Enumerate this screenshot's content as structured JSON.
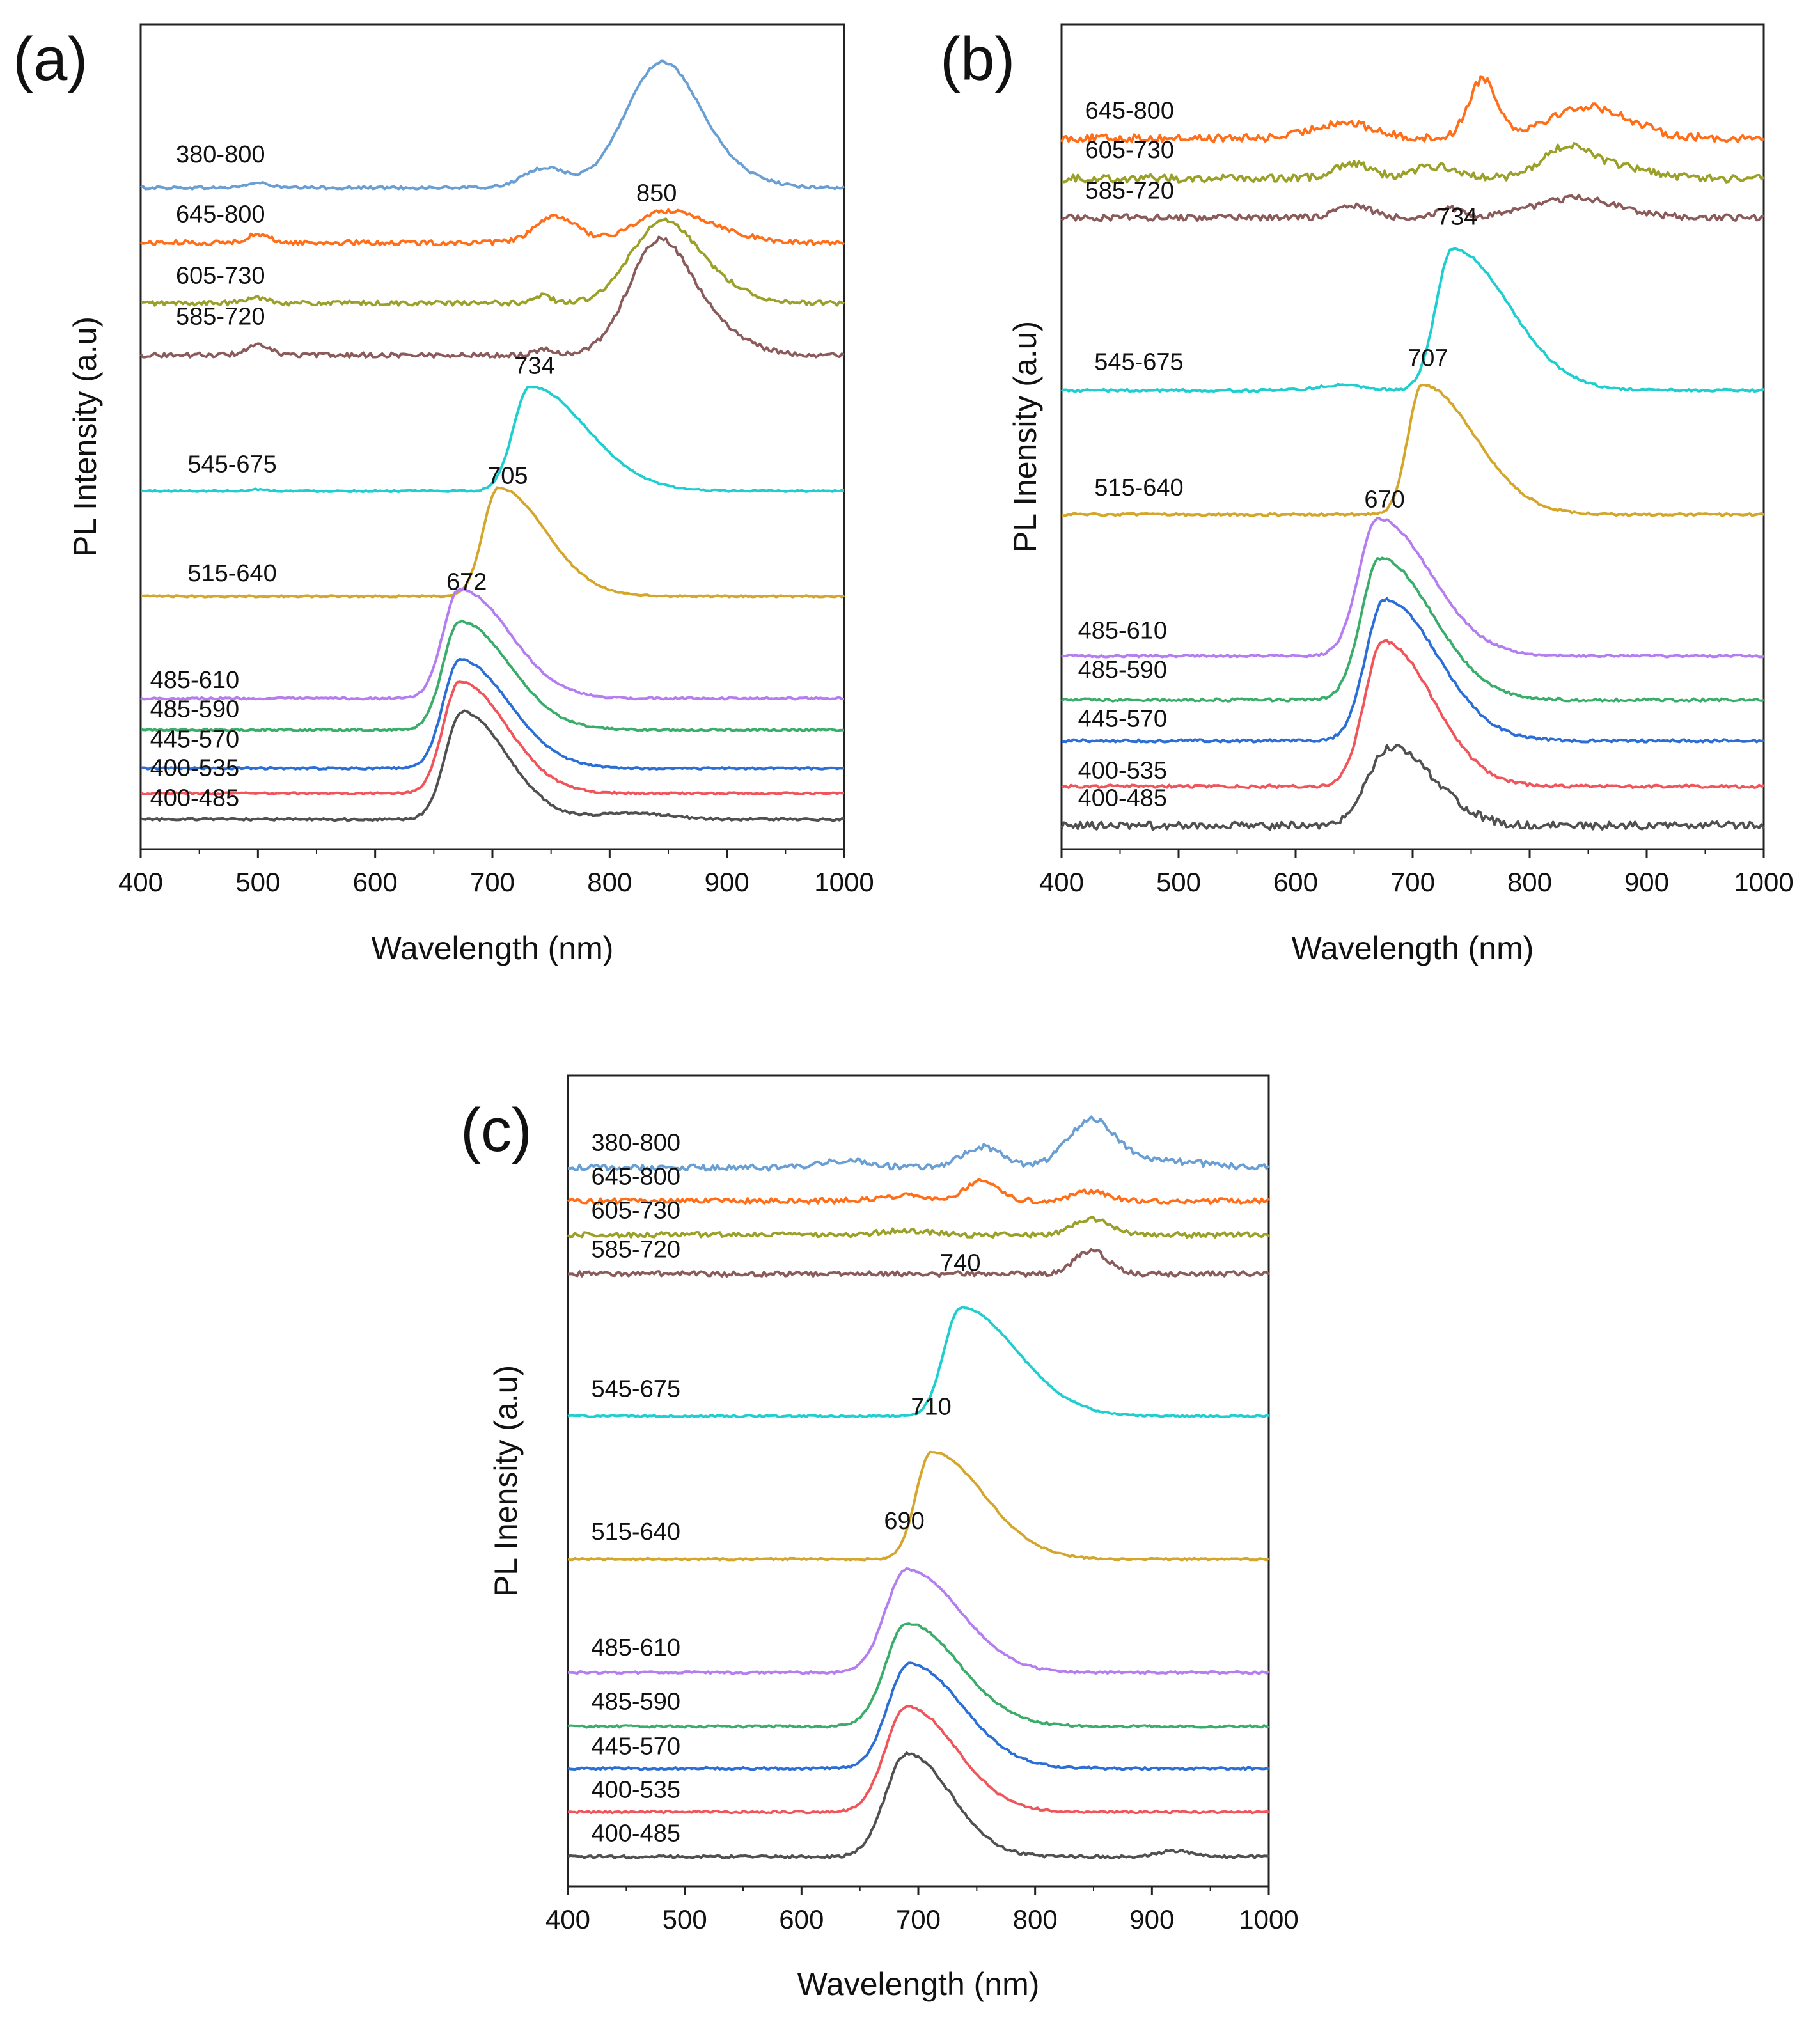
{
  "colors": {
    "380-800": "#6a9fd4",
    "645-800": "#ff6f1a",
    "605-730": "#9aa028",
    "585-720": "#8b5a5a",
    "545-675": "#1fcfd0",
    "515-640": "#d4a72c",
    "485-610": "#b47df0",
    "485-590": "#3aad6a",
    "445-570": "#2b6fd6",
    "400-535": "#f0555c",
    "400-485": "#505050"
  },
  "chart_data": [
    {
      "id": "a",
      "type": "line",
      "panel_label": "(a)",
      "xlabel": "Wavelength (nm)",
      "ylabel": "PL Intensity (a.u)",
      "xlim": [
        400,
        1000
      ],
      "ylim": [
        0,
        100
      ],
      "xticks": [
        "400",
        "500",
        "600",
        "700",
        "800",
        "900",
        "1000"
      ],
      "yticks_visible": false,
      "series": [
        {
          "name": "380-800",
          "baseline": 82.2,
          "label_x": 430,
          "label_y": 85.4,
          "noise": 0.18,
          "peaks": [
            [
              500,
              0.6,
              10
            ],
            [
              745,
              2.5,
              18
            ],
            [
              842,
              14.3,
              30
            ],
            [
              880,
              3.0,
              35
            ]
          ]
        },
        {
          "name": "645-800",
          "baseline": 75.2,
          "label_x": 430,
          "label_y": 77.8,
          "noise": 0.3,
          "peaks": [
            [
              500,
              1.0,
              10
            ],
            [
              755,
              3.3,
              18
            ],
            [
              842,
              3.0,
              25
            ],
            [
              880,
              2.0,
              30
            ]
          ]
        },
        {
          "name": "605-730",
          "baseline": 67.5,
          "label_x": 430,
          "label_y": 70.0,
          "noise": 0.3,
          "peaks": [
            [
              500,
              0.7,
              10
            ],
            [
              742,
              1.0,
              8
            ],
            [
              842,
              9.0,
              26
            ],
            [
              880,
              3.0,
              30
            ]
          ]
        },
        {
          "name": "585-720",
          "baseline": 60.9,
          "label_x": 430,
          "label_y": 64.8,
          "noise": 0.3,
          "peaks": [
            [
              500,
              1.2,
              10
            ],
            [
              745,
              0.8,
              8
            ],
            [
              840,
              13.0,
              25
            ],
            [
              880,
              4.0,
              30
            ]
          ]
        },
        {
          "name": "545-675",
          "baseline": 43.6,
          "label_x": 440,
          "label_y": 46.0,
          "noise": 0.1,
          "peaks": [
            [
              732,
              13.3,
              14,
              48
            ],
            [
              500,
              0.2,
              8
            ]
          ]
        },
        {
          "name": "515-640",
          "baseline": 30.2,
          "label_x": 440,
          "label_y": 32.1,
          "noise": 0.1,
          "peaks": [
            [
              705,
              13.8,
              13,
              40
            ]
          ]
        },
        {
          "name": "485-610",
          "baseline": 17.2,
          "label_x": 408,
          "label_y": 18.5,
          "noise": 0.12,
          "peaks": [
            [
              672,
              13.9,
              14,
              42
            ]
          ]
        },
        {
          "name": "485-590",
          "baseline": 13.2,
          "label_x": 408,
          "label_y": 14.8,
          "noise": 0.12,
          "peaks": [
            [
              672,
              13.8,
              14,
              42
            ]
          ]
        },
        {
          "name": "445-570",
          "baseline": 8.3,
          "label_x": 408,
          "label_y": 11.0,
          "noise": 0.12,
          "peaks": [
            [
              672,
              13.8,
              14,
              42
            ]
          ]
        },
        {
          "name": "400-535",
          "baseline": 5.1,
          "label_x": 408,
          "label_y": 7.3,
          "noise": 0.12,
          "peaks": [
            [
              672,
              14.2,
              14,
              40
            ]
          ]
        },
        {
          "name": "400-485",
          "baseline": 1.8,
          "label_x": 408,
          "label_y": 3.5,
          "noise": 0.15,
          "peaks": [
            [
              674,
              13.7,
              14,
              38
            ],
            [
              820,
              0.8,
              30
            ]
          ]
        }
      ],
      "annotations": [
        {
          "text": "850",
          "x": 840,
          "y": 80.5
        },
        {
          "text": "734",
          "x": 736,
          "y": 58.5
        },
        {
          "text": "705",
          "x": 713,
          "y": 44.5
        },
        {
          "text": "672",
          "x": 678,
          "y": 31.0
        }
      ]
    },
    {
      "id": "b",
      "type": "line",
      "panel_label": "(b)",
      "xlabel": "Wavelength (nm)",
      "ylabel": "PL Inensity (a.u)",
      "xlim": [
        400,
        1000
      ],
      "ylim": [
        0,
        100
      ],
      "xticks": [
        "400",
        "500",
        "600",
        "700",
        "800",
        "900",
        "1000"
      ],
      "yticks_visible": false,
      "series": [
        {
          "name": "645-800",
          "baseline": 88.5,
          "label_x": 420,
          "label_y": 91.0,
          "noise": 0.5,
          "peaks": [
            [
              640,
              2.0,
              25
            ],
            [
              760,
              7.5,
              12
            ],
            [
              850,
              4.0,
              35
            ]
          ]
        },
        {
          "name": "605-730",
          "baseline": 83.4,
          "label_x": 420,
          "label_y": 86.0,
          "noise": 0.5,
          "peaks": [
            [
              648,
              2.0,
              15
            ],
            [
              720,
              1.5,
              20
            ],
            [
              830,
              3.5,
              20
            ],
            [
              870,
              1.5,
              30
            ]
          ]
        },
        {
          "name": "585-720",
          "baseline": 78.4,
          "label_x": 420,
          "label_y": 80.8,
          "noise": 0.4,
          "peaks": [
            [
              650,
              1.5,
              15
            ],
            [
              730,
              1.2,
              10
            ],
            [
              840,
              2.5,
              35
            ]
          ]
        },
        {
          "name": "545-675",
          "baseline": 56.4,
          "label_x": 428,
          "label_y": 59.0,
          "noise": 0.15,
          "peaks": [
            [
              734,
              18.0,
              14,
              48
            ],
            [
              640,
              0.7,
              20
            ]
          ]
        },
        {
          "name": "515-640",
          "baseline": 40.6,
          "label_x": 428,
          "label_y": 43.0,
          "noise": 0.15,
          "peaks": [
            [
              708,
              16.5,
              12,
              45
            ]
          ]
        },
        {
          "name": "485-610",
          "baseline": 22.6,
          "label_x": 414,
          "label_y": 24.8,
          "noise": 0.15,
          "peaks": [
            [
              670,
              17.5,
              16,
              45
            ]
          ]
        },
        {
          "name": "485-590",
          "baseline": 17.0,
          "label_x": 414,
          "label_y": 19.8,
          "noise": 0.18,
          "peaks": [
            [
              672,
              18.0,
              16,
              45
            ]
          ]
        },
        {
          "name": "445-570",
          "baseline": 11.8,
          "label_x": 414,
          "label_y": 13.6,
          "noise": 0.18,
          "peaks": [
            [
              676,
              18.0,
              16,
              45
            ]
          ]
        },
        {
          "name": "400-535",
          "baseline": 6.0,
          "label_x": 414,
          "label_y": 7.0,
          "noise": 0.2,
          "peaks": [
            [
              675,
              18.5,
              16,
              42
            ]
          ]
        },
        {
          "name": "400-485",
          "baseline": 1.0,
          "label_x": 414,
          "label_y": 3.5,
          "noise": 0.5,
          "peaks": [
            [
              680,
              10.0,
              18,
              38
            ]
          ]
        }
      ],
      "annotations": [
        {
          "text": "734",
          "x": 738,
          "y": 77.5
        },
        {
          "text": "707",
          "x": 713,
          "y": 59.5
        },
        {
          "text": "670",
          "x": 676,
          "y": 41.5
        }
      ]
    },
    {
      "id": "c",
      "type": "line",
      "panel_label": "(c)",
      "xlabel": "Wavelength (nm)",
      "ylabel": "PL Inensity (a.u)",
      "xlim": [
        400,
        1000
      ],
      "ylim": [
        0,
        100
      ],
      "xticks": [
        "400",
        "500",
        "600",
        "700",
        "800",
        "900",
        "1000"
      ],
      "yticks_visible": false,
      "series": [
        {
          "name": "380-800",
          "baseline": 87.5,
          "label_x": 420,
          "label_y": 89.8,
          "noise": 0.4,
          "peaks": [
            [
              640,
              1.0,
              20
            ],
            [
              755,
              2.8,
              18
            ],
            [
              848,
              6.2,
              20
            ],
            [
              900,
              1.0,
              40
            ]
          ]
        },
        {
          "name": "645-800",
          "baseline": 83.0,
          "label_x": 420,
          "label_y": 85.2,
          "noise": 0.35,
          "peaks": [
            [
              690,
              0.8,
              20
            ],
            [
              755,
              2.9,
              14
            ],
            [
              848,
              1.3,
              15
            ]
          ]
        },
        {
          "name": "605-730",
          "baseline": 78.4,
          "label_x": 420,
          "label_y": 80.6,
          "noise": 0.35,
          "peaks": [
            [
              690,
              0.6,
              20
            ],
            [
              848,
              2.2,
              15
            ]
          ]
        },
        {
          "name": "585-720",
          "baseline": 73.1,
          "label_x": 420,
          "label_y": 75.3,
          "noise": 0.35,
          "peaks": [
            [
              848,
              3.2,
              14
            ]
          ]
        },
        {
          "name": "545-675",
          "baseline": 53.8,
          "label_x": 420,
          "label_y": 56.4,
          "noise": 0.12,
          "peaks": [
            [
              736,
              14.7,
              14,
              48
            ]
          ]
        },
        {
          "name": "515-640",
          "baseline": 34.4,
          "label_x": 420,
          "label_y": 37.0,
          "noise": 0.12,
          "peaks": [
            [
              711,
              14.5,
              13,
              45
            ]
          ]
        },
        {
          "name": "485-610",
          "baseline": 19.0,
          "label_x": 420,
          "label_y": 21.3,
          "noise": 0.15,
          "peaks": [
            [
              690,
              14.0,
              18,
              45
            ]
          ]
        },
        {
          "name": "485-590",
          "baseline": 11.7,
          "label_x": 420,
          "label_y": 14.0,
          "noise": 0.15,
          "peaks": [
            [
              690,
              14.0,
              18,
              45
            ]
          ]
        },
        {
          "name": "445-570",
          "baseline": 6.0,
          "label_x": 420,
          "label_y": 7.9,
          "noise": 0.15,
          "peaks": [
            [
              692,
              14.2,
              18,
              45
            ]
          ]
        },
        {
          "name": "400-535",
          "baseline": 0.1,
          "label_x": 420,
          "label_y": 2.0,
          "noise": 0.15,
          "peaks": [
            [
              690,
              14.3,
              18,
              42
            ]
          ]
        },
        {
          "name": "400-485",
          "baseline": -6.0,
          "label_x": 420,
          "label_y": -3.9,
          "noise": 0.2,
          "peaks": [
            [
              690,
              14.0,
              18,
              38
            ],
            [
              920,
              0.8,
              15
            ]
          ]
        }
      ],
      "annotations": [
        {
          "text": "740",
          "x": 736,
          "y": 73.5
        },
        {
          "text": "710",
          "x": 711,
          "y": 54.0
        },
        {
          "text": "690",
          "x": 688,
          "y": 38.5
        }
      ]
    }
  ]
}
